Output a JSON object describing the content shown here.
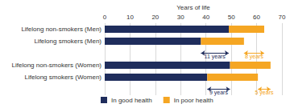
{
  "chart_data": {
    "type": "bar",
    "orientation": "horizontal",
    "stacked": true,
    "x_label": "Years of life",
    "categories": [
      "Lifelong non-smokers (Men)",
      "Lifelong smokers (Men)",
      null,
      "Lifelong non-smokers (Women)",
      "Lifelong smokers (Women)",
      null
    ],
    "series": [
      {
        "name": "In good health",
        "color": "#1f2d5c",
        "values": [
          49,
          38,
          null,
          49.5,
          40.5,
          null
        ]
      },
      {
        "name": "In poor health",
        "color": "#f5a623",
        "values": [
          14,
          17,
          null,
          16,
          20,
          null
        ]
      }
    ],
    "xlim": [
      0,
      70
    ],
    "xticks": [
      0,
      10,
      20,
      30,
      40,
      50,
      60,
      70
    ],
    "grid": true,
    "legend": "lower left",
    "annotations": [
      {
        "text": "11 years",
        "row": 2,
        "from": 38,
        "to": 49,
        "series": "In good health"
      },
      {
        "text": "8 years",
        "row": 2,
        "from": 55,
        "to": 63,
        "series": "In poor health"
      },
      {
        "text": "9 years",
        "row": 5,
        "from": 40.5,
        "to": 49.5,
        "series": "In good health"
      },
      {
        "text": "5 years",
        "row": 5,
        "from": 60.5,
        "to": 65.5,
        "series": "In poor health"
      }
    ]
  }
}
